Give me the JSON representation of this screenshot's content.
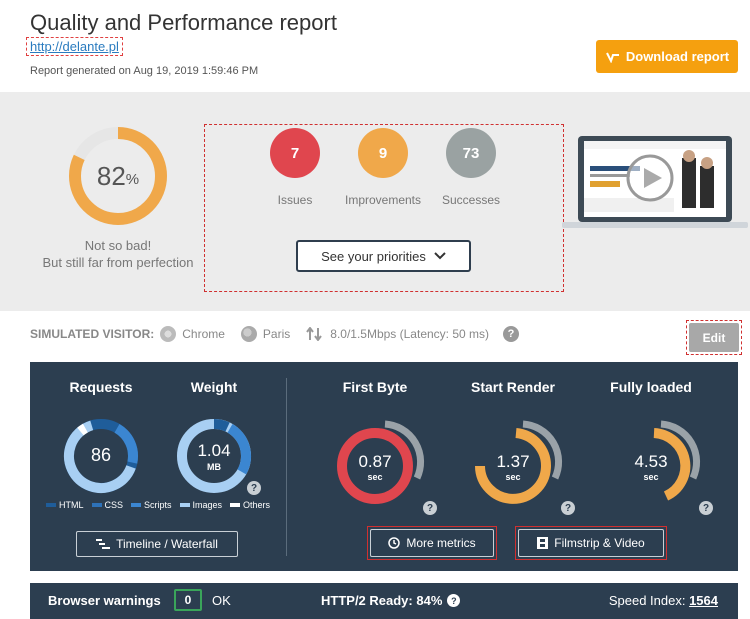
{
  "header": {
    "title": "Quality and Performance report",
    "url": "http://delante.pl",
    "generated": "Report generated on Aug 19, 2019 1:59:46 PM",
    "download_label": "Download report"
  },
  "score": {
    "value": "82",
    "unit": "%",
    "fraction": 0.82,
    "line1": "Not so bad!",
    "line2": "But still far from perfection"
  },
  "priorities": {
    "issues_count": "7",
    "issues_label": "Issues",
    "improvements_count": "9",
    "improvements_label": "Improvements",
    "successes_count": "73",
    "successes_label": "Successes",
    "button_label": "See your priorities"
  },
  "visitor": {
    "label": "SIMULATED VISITOR:",
    "browser": "Chrome",
    "location": "Paris",
    "connection": "8.0/1.5Mbps (Latency: 50 ms)",
    "help": "?",
    "edit_label": "Edit"
  },
  "metrics": {
    "requests_label": "Requests",
    "requests_value": "86",
    "weight_label": "Weight",
    "weight_value": "1.04",
    "weight_unit": "MB",
    "first_byte_label": "First Byte",
    "first_byte_value": "0.87",
    "start_render_label": "Start Render",
    "start_render_value": "1.37",
    "fully_loaded_label": "Fully loaded",
    "fully_loaded_value": "4.53",
    "unit_sec": "sec",
    "legend": [
      "HTML",
      "CSS",
      "Scripts",
      "Images",
      "Others"
    ],
    "timeline_label": "Timeline / Waterfall",
    "more_metrics_label": "More metrics",
    "filmstrip_label": "Filmstrip & Video"
  },
  "bottom": {
    "warnings_label": "Browser warnings",
    "warnings_count": "0",
    "warnings_status": "OK",
    "http2_label": "HTTP/2 Ready: 84%",
    "speed_index_label": "Speed Index:",
    "speed_index_value": "1564"
  },
  "colors": {
    "accent": "#f5a00f",
    "issues": "#e0464e",
    "improvements": "#f0a84a",
    "successes": "#9aa2a2",
    "panel": "#2c3e50",
    "ok": "#3aa55a"
  },
  "icons": {
    "download": "download-icon",
    "chevron": "chevron-down-icon",
    "chrome": "chrome-icon",
    "globe": "globe-icon",
    "arrows": "up-down-arrows-icon",
    "timeline": "waterfall-icon",
    "clock": "clock-icon",
    "film": "film-icon",
    "play": "play-icon"
  }
}
